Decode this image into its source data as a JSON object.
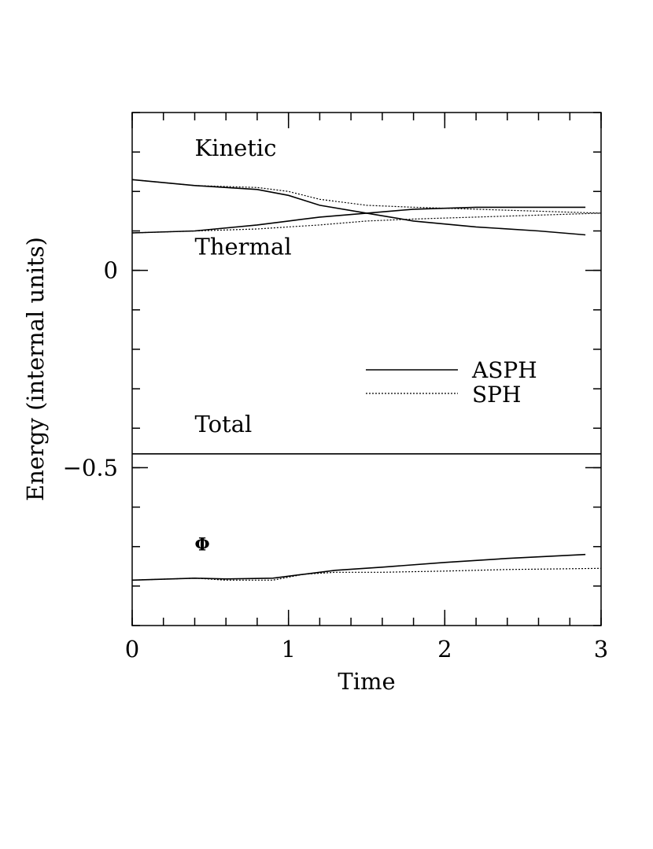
{
  "chart_data": {
    "type": "line",
    "title": "",
    "xlabel": "Time",
    "ylabel": "Energy (internal units)",
    "xlim": [
      0,
      3
    ],
    "ylim": [
      -0.9,
      0.4
    ],
    "x_ticks": [
      0,
      1,
      2,
      3
    ],
    "x_tick_labels": [
      "0",
      "1",
      "2",
      "3"
    ],
    "y_ticks": [
      -0.5,
      0
    ],
    "y_tick_labels": [
      "−0.5",
      "0"
    ],
    "x_minor_step": 0.2,
    "y_minor_step": 0.1,
    "grid": false,
    "legend": {
      "position": "center-right",
      "entries": [
        {
          "label": "ASPH",
          "style": "solid"
        },
        {
          "label": "SPH",
          "style": "dotted"
        }
      ]
    },
    "annotations": [
      {
        "text": "Kinetic",
        "x": 0.4,
        "y": 0.29
      },
      {
        "text": "Thermal",
        "x": 0.4,
        "y": 0.04
      },
      {
        "text": "Total",
        "x": 0.4,
        "y": -0.41
      },
      {
        "text": "Φ",
        "x": 0.4,
        "y": -0.71
      }
    ],
    "series": [
      {
        "name": "Kinetic ASPH",
        "group": "Kinetic",
        "method": "ASPH",
        "style": "solid",
        "x": [
          0,
          0.4,
          0.8,
          1.0,
          1.2,
          1.5,
          1.8,
          2.2,
          2.6,
          2.9
        ],
        "y": [
          0.23,
          0.215,
          0.205,
          0.19,
          0.165,
          0.145,
          0.125,
          0.11,
          0.1,
          0.09
        ]
      },
      {
        "name": "Kinetic SPH",
        "group": "Kinetic",
        "method": "SPH",
        "style": "dotted",
        "x": [
          0,
          0.4,
          0.8,
          1.0,
          1.2,
          1.5,
          1.8,
          2.2,
          2.6,
          3.0
        ],
        "y": [
          0.23,
          0.215,
          0.21,
          0.2,
          0.18,
          0.165,
          0.16,
          0.155,
          0.15,
          0.145
        ]
      },
      {
        "name": "Thermal ASPH",
        "group": "Thermal",
        "method": "ASPH",
        "style": "solid",
        "x": [
          0,
          0.4,
          0.8,
          1.0,
          1.2,
          1.5,
          1.8,
          2.2,
          2.6,
          2.9
        ],
        "y": [
          0.095,
          0.1,
          0.115,
          0.125,
          0.135,
          0.145,
          0.155,
          0.16,
          0.16,
          0.16
        ]
      },
      {
        "name": "Thermal SPH",
        "group": "Thermal",
        "method": "SPH",
        "style": "dotted",
        "x": [
          0,
          0.4,
          0.8,
          1.0,
          1.2,
          1.5,
          1.8,
          2.2,
          2.6,
          3.0
        ],
        "y": [
          0.095,
          0.1,
          0.105,
          0.11,
          0.115,
          0.125,
          0.13,
          0.135,
          0.14,
          0.145
        ]
      },
      {
        "name": "Total ASPH",
        "group": "Total",
        "method": "ASPH",
        "style": "solid",
        "x": [
          0,
          1,
          2,
          3
        ],
        "y": [
          -0.465,
          -0.465,
          -0.465,
          -0.465
        ]
      },
      {
        "name": "Total SPH",
        "group": "Total",
        "method": "SPH",
        "style": "dotted",
        "x": [
          0,
          1,
          2,
          3
        ],
        "y": [
          -0.465,
          -0.465,
          -0.465,
          -0.465
        ]
      },
      {
        "name": "Φ ASPH",
        "group": "Φ",
        "method": "ASPH",
        "style": "solid",
        "x": [
          0,
          0.4,
          0.6,
          0.9,
          1.1,
          1.3,
          1.6,
          2.0,
          2.4,
          2.9
        ],
        "y": [
          -0.785,
          -0.78,
          -0.782,
          -0.78,
          -0.77,
          -0.76,
          -0.752,
          -0.74,
          -0.73,
          -0.72
        ]
      },
      {
        "name": "Φ SPH",
        "group": "Φ",
        "method": "SPH",
        "style": "dotted",
        "x": [
          0,
          0.4,
          0.6,
          0.9,
          1.1,
          1.3,
          1.6,
          2.0,
          2.4,
          3.0
        ],
        "y": [
          -0.785,
          -0.78,
          -0.785,
          -0.785,
          -0.77,
          -0.765,
          -0.765,
          -0.762,
          -0.758,
          -0.755
        ]
      }
    ]
  }
}
